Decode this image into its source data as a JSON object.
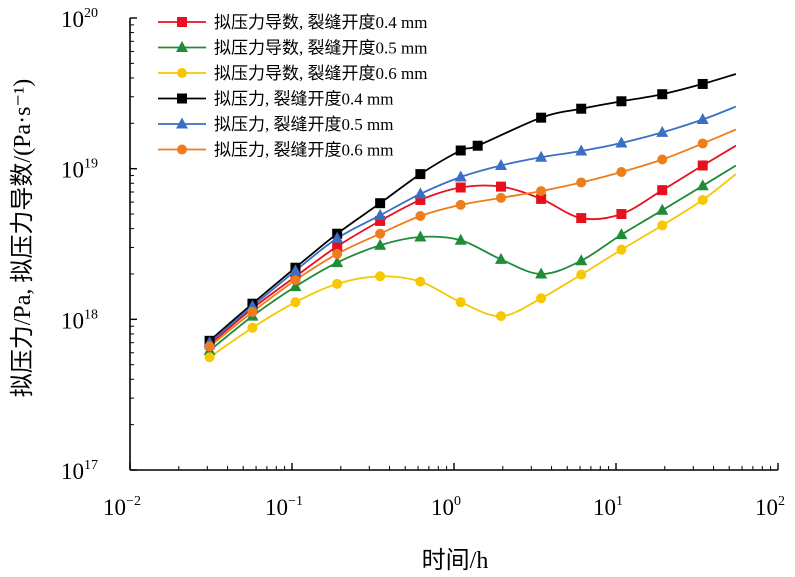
{
  "chart_data": {
    "type": "line",
    "title": "",
    "xlabel": "时间/h",
    "ylabel": "拟压力/Pa, 拟压力导数/(Pa·s⁻¹)",
    "xscale": "log",
    "yscale": "log",
    "xlim": [
      0.01,
      100
    ],
    "ylim": [
      1e+17,
      1e+20
    ],
    "x_ticks": [
      {
        "base": "10",
        "exp": "−2",
        "value": 0.01
      },
      {
        "base": "10",
        "exp": "−1",
        "value": 0.1
      },
      {
        "base": "10",
        "exp": "0",
        "value": 1
      },
      {
        "base": "10",
        "exp": "1",
        "value": 10
      },
      {
        "base": "10",
        "exp": "2",
        "value": 100
      }
    ],
    "y_ticks": [
      {
        "base": "10",
        "exp": "17",
        "value": 1e+17
      },
      {
        "base": "10",
        "exp": "18",
        "value": 1e+18
      },
      {
        "base": "10",
        "exp": "19",
        "value": 1e+19
      },
      {
        "base": "10",
        "exp": "20",
        "value": 1e+20
      }
    ],
    "legend_position": "top-left",
    "series": [
      {
        "name": "拟压力导数, 裂缝开度0.4 mm",
        "color": "#e8101c",
        "marker": "square",
        "x": [
          0.031,
          0.057,
          0.105,
          0.19,
          0.35,
          0.62,
          1.1,
          1.95,
          3.45,
          6.1,
          10.8,
          19.3,
          34.3
        ],
        "y": [
          6.8e+17,
          1.18e+18,
          1.92e+18,
          3.05e+18,
          4.5e+18,
          6.2e+18,
          7.5e+18,
          7.6e+18,
          6.3e+18,
          4.7e+18,
          5e+18,
          7.2e+18,
          1.05e+19
        ],
        "curve_end": {
          "x": 55,
          "y": 1.42e+19
        }
      },
      {
        "name": "拟压力导数, 裂缝开度0.5 mm",
        "color": "#1e8c38",
        "marker": "triangle",
        "x": [
          0.031,
          0.057,
          0.105,
          0.19,
          0.35,
          0.62,
          1.1,
          1.95,
          3.45,
          6.1,
          10.8,
          19.3,
          34.3
        ],
        "y": [
          6.2e+17,
          1.05e+18,
          1.65e+18,
          2.38e+18,
          3.1e+18,
          3.52e+18,
          3.35e+18,
          2.5e+18,
          2e+18,
          2.45e+18,
          3.65e+18,
          5.3e+18,
          7.7e+18
        ],
        "curve_end": {
          "x": 55,
          "y": 1.05e+19
        }
      },
      {
        "name": "拟压力导数, 裂缝开度0.6 mm",
        "color": "#f5c800",
        "marker": "circle",
        "x": [
          0.031,
          0.057,
          0.105,
          0.19,
          0.35,
          0.62,
          1.1,
          1.95,
          3.45,
          6.1,
          10.8,
          19.3,
          34.3
        ],
        "y": [
          5.6e+17,
          8.8e+17,
          1.3e+18,
          1.72e+18,
          1.93e+18,
          1.78e+18,
          1.3e+18,
          1.05e+18,
          1.38e+18,
          1.98e+18,
          2.9e+18,
          4.2e+18,
          6.2e+18
        ],
        "curve_end": {
          "x": 55,
          "y": 9.2e+18
        }
      },
      {
        "name": "拟压力, 裂缝开度0.4 mm",
        "color": "#000000",
        "marker": "square",
        "x": [
          0.031,
          0.057,
          0.105,
          0.19,
          0.35,
          0.62,
          1.1,
          1.4,
          3.45,
          6.1,
          10.8,
          19.3,
          34.3
        ],
        "y": [
          7.2e+17,
          1.27e+18,
          2.2e+18,
          3.7e+18,
          5.9e+18,
          9.2e+18,
          1.32e+19,
          1.42e+19,
          2.18e+19,
          2.5e+19,
          2.8e+19,
          3.12e+19,
          3.65e+19
        ],
        "curve_end": {
          "x": 55,
          "y": 4.25e+19
        }
      },
      {
        "name": "拟压力, 裂缝开度0.5 mm",
        "color": "#3a6fc4",
        "marker": "triangle",
        "x": [
          0.031,
          0.057,
          0.105,
          0.19,
          0.35,
          0.62,
          1.1,
          1.95,
          3.45,
          6.1,
          10.8,
          19.3,
          34.3
        ],
        "y": [
          7e+17,
          1.22e+18,
          2.1e+18,
          3.45e+18,
          4.9e+18,
          6.8e+18,
          8.8e+18,
          1.05e+19,
          1.19e+19,
          1.31e+19,
          1.48e+19,
          1.74e+19,
          2.12e+19
        ],
        "curve_end": {
          "x": 55,
          "y": 2.58e+19
        }
      },
      {
        "name": "拟压力, 裂缝开度0.6 mm",
        "color": "#ef7d1a",
        "marker": "circle",
        "x": [
          0.031,
          0.057,
          0.105,
          0.19,
          0.35,
          0.62,
          1.1,
          1.95,
          3.45,
          6.1,
          10.8,
          19.3,
          34.3
        ],
        "y": [
          6.6e+17,
          1.12e+18,
          1.82e+18,
          2.72e+18,
          3.7e+18,
          4.85e+18,
          5.75e+18,
          6.4e+18,
          7.1e+18,
          8.1e+18,
          9.5e+18,
          1.15e+19,
          1.47e+19
        ],
        "curve_end": {
          "x": 55,
          "y": 1.82e+19
        }
      }
    ]
  }
}
